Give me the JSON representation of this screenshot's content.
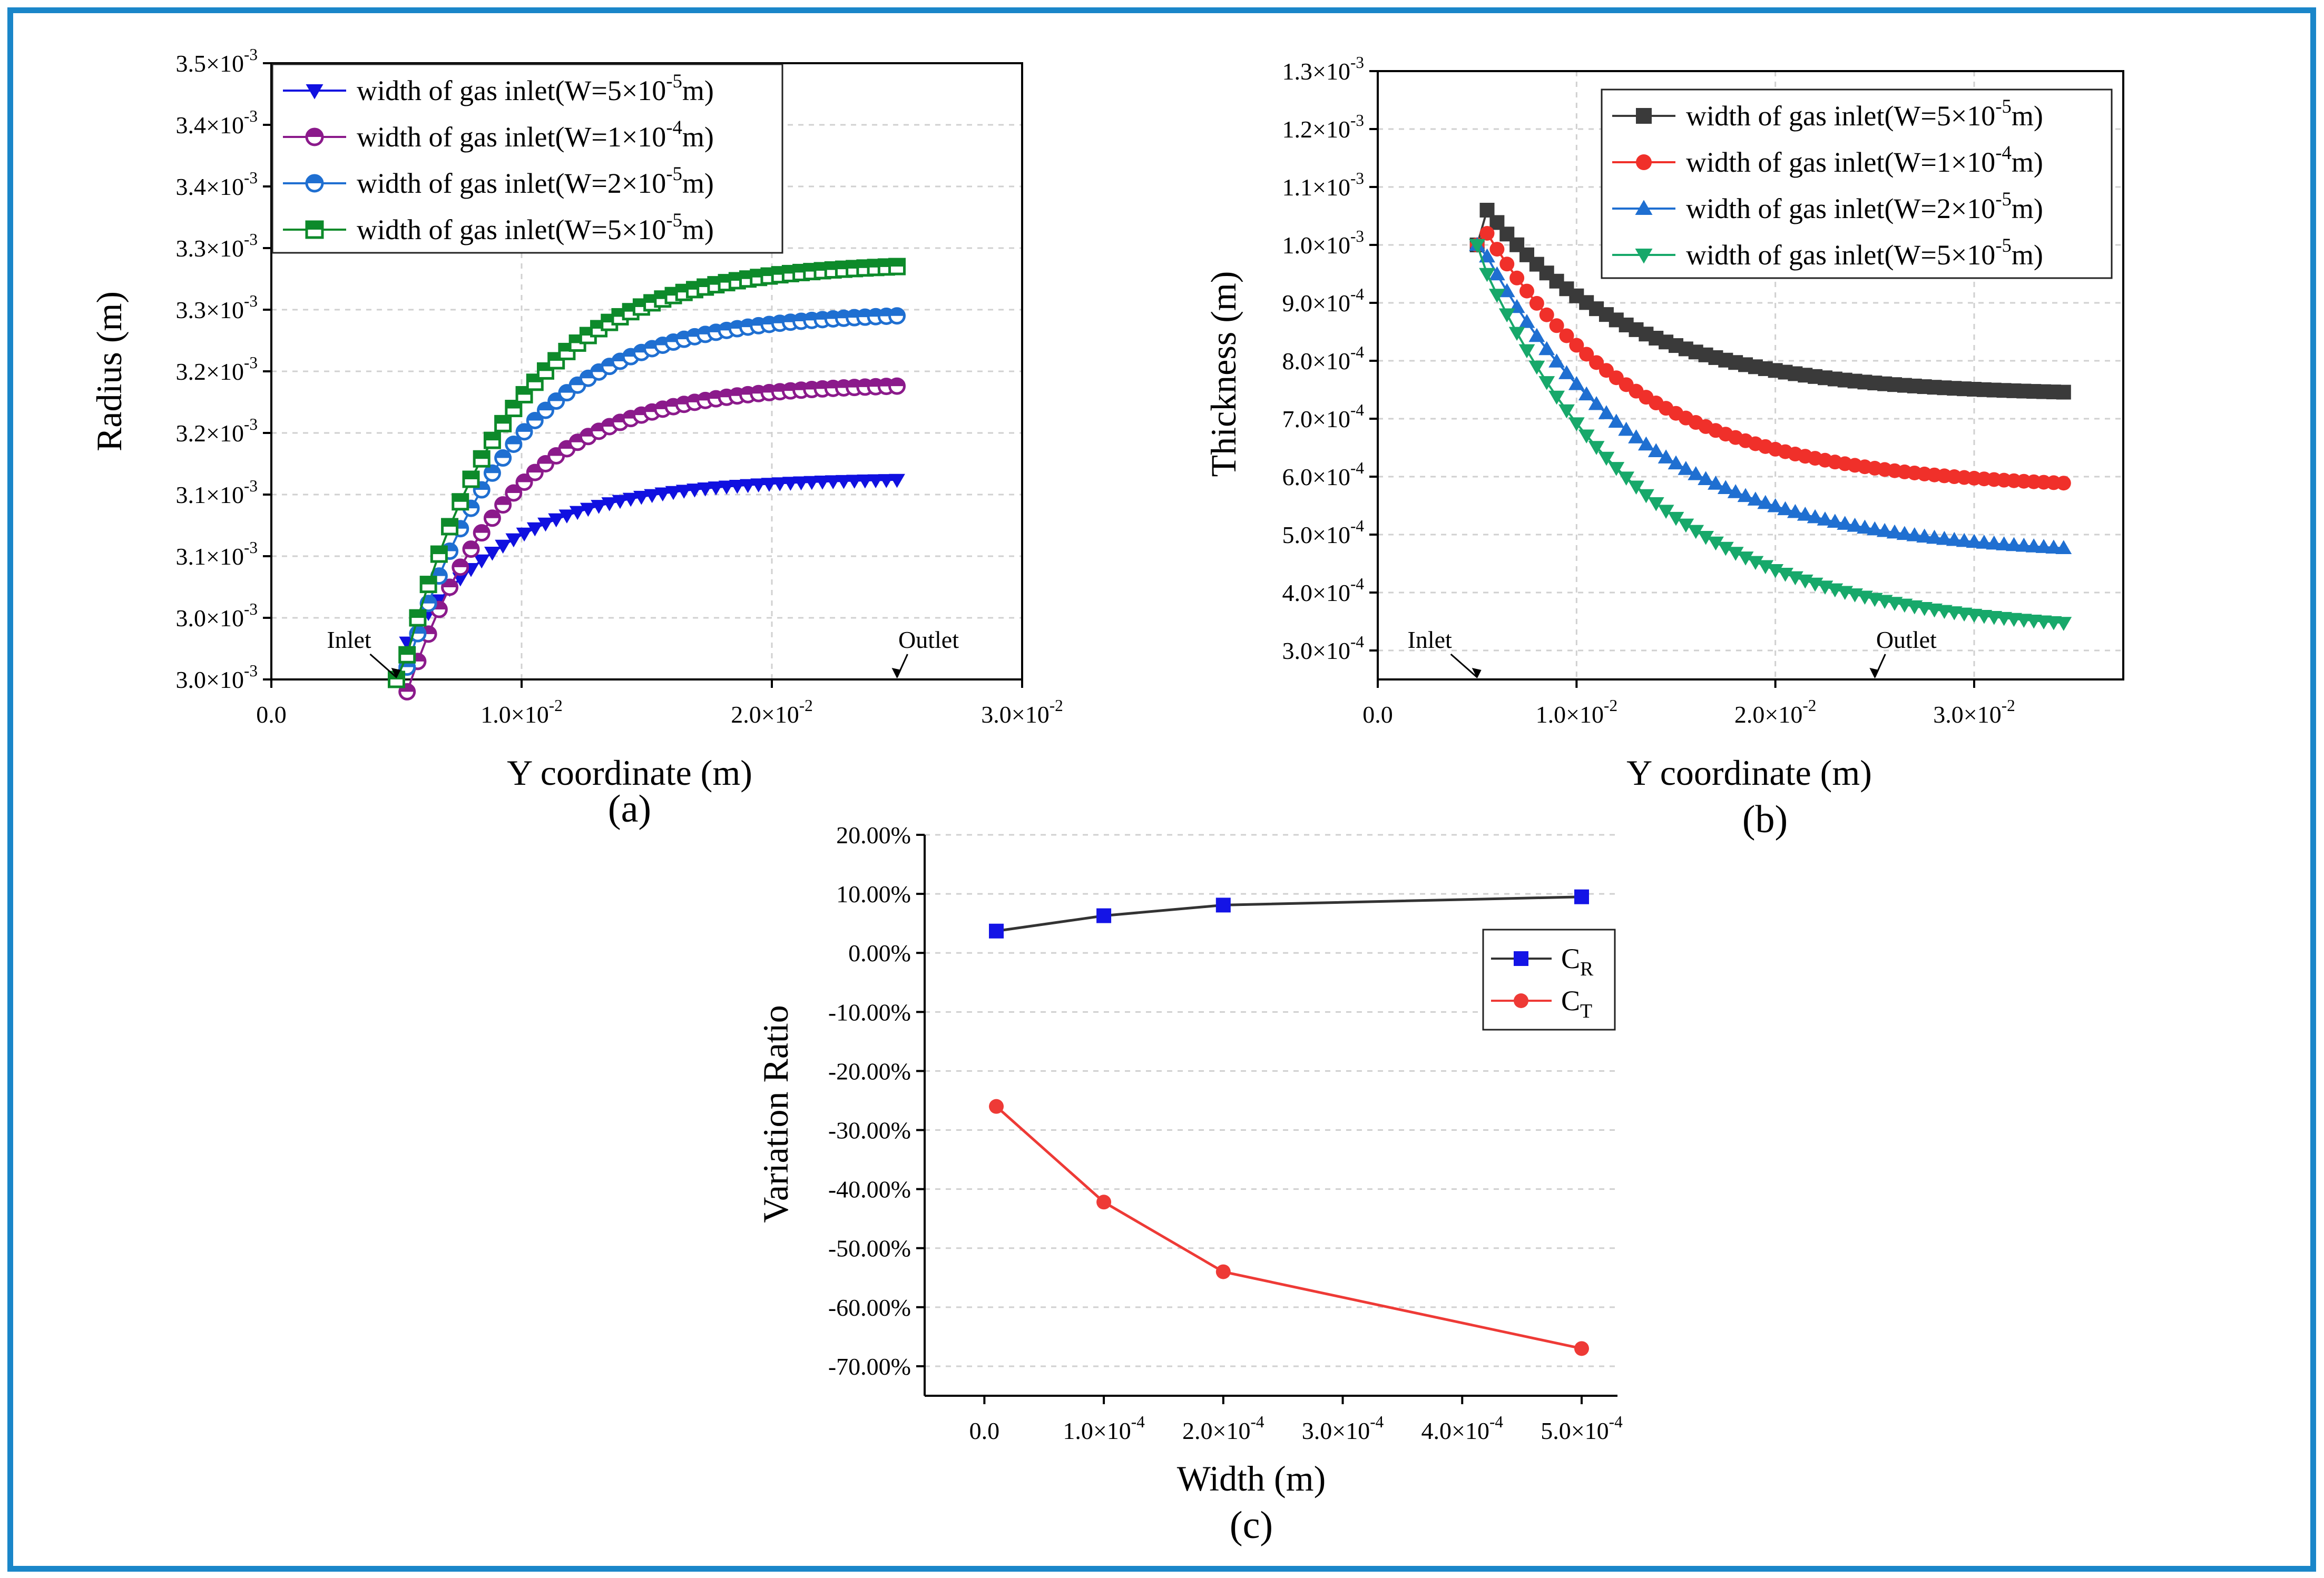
{
  "figure": {
    "border_color": "#1a86c9",
    "captions": {
      "a": "(a)",
      "b": "(b)",
      "c": "(c)"
    }
  },
  "chart_data": [
    {
      "id": "a",
      "type": "line",
      "xlabel": "Y coordinate (m)",
      "ylabel": "Radius (m)",
      "xlim": [
        0,
        0.03
      ],
      "ylim": [
        0.003,
        0.0035
      ],
      "xticks": [
        {
          "v": 0,
          "label": "0.0",
          "sup": ""
        },
        {
          "v": 0.01,
          "label": "1.0×10",
          "sup": "-2"
        },
        {
          "v": 0.02,
          "label": "2.0×10",
          "sup": "-2"
        },
        {
          "v": 0.03,
          "label": "3.0×10",
          "sup": "-2"
        }
      ],
      "yticks": [
        {
          "v": 0.003,
          "label": "3.0×10",
          "sup": "-3"
        },
        {
          "v": 0.00305,
          "label": "3.0×10",
          "sup": "-3"
        },
        {
          "v": 0.0031,
          "label": "3.1×10",
          "sup": "-3"
        },
        {
          "v": 0.00315,
          "label": "3.1×10",
          "sup": "-3"
        },
        {
          "v": 0.0032,
          "label": "3.2×10",
          "sup": "-3"
        },
        {
          "v": 0.00325,
          "label": "3.2×10",
          "sup": "-3"
        },
        {
          "v": 0.0033,
          "label": "3.3×10",
          "sup": "-3"
        },
        {
          "v": 0.00335,
          "label": "3.3×10",
          "sup": "-3"
        },
        {
          "v": 0.0034,
          "label": "3.4×10",
          "sup": "-3"
        },
        {
          "v": 0.00345,
          "label": "3.4×10",
          "sup": "-3"
        },
        {
          "v": 0.0035,
          "label": "3.5×10",
          "sup": "-3"
        }
      ],
      "annotations": [
        {
          "text": "Inlet",
          "x": 0.005,
          "y": 0.003
        },
        {
          "text": "Outlet",
          "x": 0.025,
          "y": 0.003
        }
      ],
      "series": [
        {
          "name": "width of gas inlet(W=5×10",
          "sup": "-5",
          "tail": "m)",
          "color": "#1010e0",
          "marker": "tri-down",
          "start": 0.003,
          "dip": 0.00303,
          "end": 0.003162,
          "k": 0.22
        },
        {
          "name": "width of gas inlet(W=1×10",
          "sup": "-4",
          "tail": "m)",
          "color": "#8b1a8b",
          "marker": "circle-half",
          "start": 0.003,
          "dip": 0.00299,
          "end": 0.003238,
          "k": 0.21
        },
        {
          "name": "width of gas inlet(W=2×10",
          "sup": "-5",
          "tail": "m)",
          "color": "#1f6fd1",
          "marker": "circle-half",
          "start": 0.003,
          "dip": 0.00301,
          "end": 0.003295,
          "k": 0.22
        },
        {
          "name": "width of gas inlet(W=5×10",
          "sup": "-5",
          "tail": "m)",
          "color": "#0d8a2a",
          "marker": "square-half",
          "start": 0.003,
          "dip": 0.00302,
          "end": 0.003335,
          "k": 0.22
        }
      ]
    },
    {
      "id": "b",
      "type": "line",
      "xlabel": "Y coordinate (m)",
      "ylabel": "Thickness (m)",
      "xlim": [
        0,
        0.0375
      ],
      "ylim": [
        0.00025,
        0.0013
      ],
      "xticks": [
        {
          "v": 0,
          "label": "0.0",
          "sup": ""
        },
        {
          "v": 0.01,
          "label": "1.0×10",
          "sup": "-2"
        },
        {
          "v": 0.02,
          "label": "2.0×10",
          "sup": "-2"
        },
        {
          "v": 0.03,
          "label": "3.0×10",
          "sup": "-2"
        }
      ],
      "yticks": [
        {
          "v": 0.0003,
          "label": "3.0×10",
          "sup": "-4"
        },
        {
          "v": 0.0004,
          "label": "4.0×10",
          "sup": "-4"
        },
        {
          "v": 0.0005,
          "label": "5.0×10",
          "sup": "-4"
        },
        {
          "v": 0.0006,
          "label": "6.0×10",
          "sup": "-4"
        },
        {
          "v": 0.0007,
          "label": "7.0×10",
          "sup": "-4"
        },
        {
          "v": 0.0008,
          "label": "8.0×10",
          "sup": "-4"
        },
        {
          "v": 0.0009,
          "label": "9.0×10",
          "sup": "-4"
        },
        {
          "v": 0.001,
          "label": "1.0×10",
          "sup": "-3"
        },
        {
          "v": 0.0011,
          "label": "1.1×10",
          "sup": "-3"
        },
        {
          "v": 0.0012,
          "label": "1.2×10",
          "sup": "-3"
        },
        {
          "v": 0.0013,
          "label": "1.3×10",
          "sup": "-3"
        }
      ],
      "annotations": [
        {
          "text": "Inlet",
          "x": 0.005,
          "y": 0.00025
        },
        {
          "text": "Outlet",
          "x": 0.025,
          "y": 0.00025
        }
      ],
      "series": [
        {
          "name": "width of gas inlet(W=5×10",
          "sup": "-5",
          "tail": "m)",
          "color": "#3a3a3a",
          "marker": "square",
          "start": 0.001,
          "peak": 0.00106,
          "end": 0.00074,
          "k": 0.25
        },
        {
          "name": "width of gas inlet(W=1×10",
          "sup": "-4",
          "tail": "m)",
          "color": "#f0302a",
          "marker": "circle",
          "start": 0.001,
          "peak": 0.00102,
          "end": 0.000578,
          "k": 0.27
        },
        {
          "name": "width of gas inlet(W=2×10",
          "sup": "-5",
          "tail": "m)",
          "color": "#1f6fd1",
          "marker": "tri-up",
          "start": 0.001,
          "peak": 0.00098,
          "end": 0.000462,
          "k": 0.28
        },
        {
          "name": "width of gas inlet(W=5×10",
          "sup": "-5",
          "tail": "m)",
          "color": "#17a86a",
          "marker": "tri-down",
          "start": 0.001,
          "peak": 0.00095,
          "end": 0.000328,
          "k": 0.29
        }
      ]
    },
    {
      "id": "c",
      "type": "line",
      "xlabel": "Width (m)",
      "ylabel": "Variation Ratio",
      "xlim": [
        -5e-05,
        0.00053
      ],
      "ylim": [
        -0.75,
        0.2
      ],
      "xticks": [
        {
          "v": 0,
          "label": "0.0",
          "sup": ""
        },
        {
          "v": 0.0001,
          "label": "1.0×10",
          "sup": "-4"
        },
        {
          "v": 0.0002,
          "label": "2.0×10",
          "sup": "-4"
        },
        {
          "v": 0.0003,
          "label": "3.0×10",
          "sup": "-4"
        },
        {
          "v": 0.0004,
          "label": "4.0×10",
          "sup": "-4"
        },
        {
          "v": 0.0005,
          "label": "5.0×10",
          "sup": "-4"
        }
      ],
      "yticks": [
        {
          "v": 0.2,
          "label": "20.00%",
          "sup": ""
        },
        {
          "v": 0.1,
          "label": "10.00%",
          "sup": ""
        },
        {
          "v": 0.0,
          "label": "0.00%",
          "sup": ""
        },
        {
          "v": -0.1,
          "label": "-10.00%",
          "sup": ""
        },
        {
          "v": -0.2,
          "label": "-20.00%",
          "sup": ""
        },
        {
          "v": -0.3,
          "label": "-30.00%",
          "sup": ""
        },
        {
          "v": -0.4,
          "label": "-40.00%",
          "sup": ""
        },
        {
          "v": -0.5,
          "label": "-50.00%",
          "sup": ""
        },
        {
          "v": -0.6,
          "label": "-60.00%",
          "sup": ""
        },
        {
          "v": -0.7,
          "label": "-70.00%",
          "sup": ""
        }
      ],
      "series": [
        {
          "name": "C",
          "sub": "R",
          "color": "#1414e6",
          "line": "#333333",
          "marker": "square",
          "x": [
            1e-05,
            0.0001,
            0.0002,
            0.0005
          ],
          "y": [
            0.037,
            0.063,
            0.081,
            0.095
          ]
        },
        {
          "name": "C",
          "sub": "T",
          "color": "#ee3a36",
          "line": "#ee3a36",
          "marker": "circle",
          "x": [
            1e-05,
            0.0001,
            0.0002,
            0.0005
          ],
          "y": [
            -0.26,
            -0.422,
            -0.54,
            -0.67
          ]
        }
      ]
    }
  ]
}
